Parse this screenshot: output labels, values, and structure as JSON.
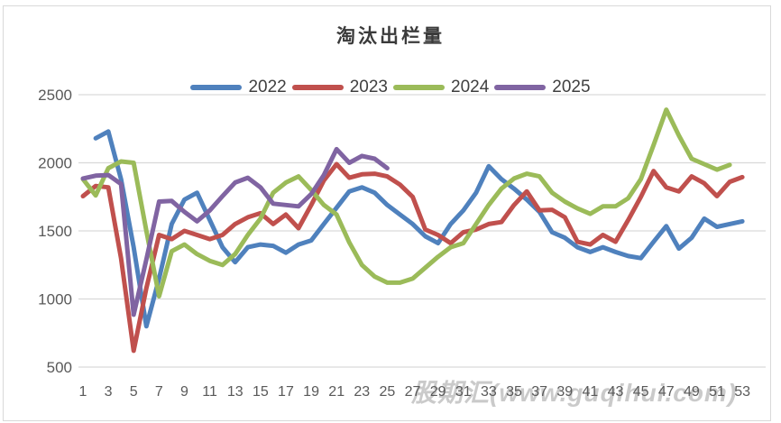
{
  "watermark_text": "股期汇(www.guqihui.com)",
  "chart_data": {
    "type": "line",
    "title": "淘汰出栏量",
    "xlabel": "",
    "ylabel": "",
    "x": [
      1,
      2,
      3,
      4,
      5,
      6,
      7,
      8,
      9,
      10,
      11,
      12,
      13,
      14,
      15,
      16,
      17,
      18,
      19,
      20,
      21,
      22,
      23,
      24,
      25,
      26,
      27,
      28,
      29,
      30,
      31,
      32,
      33,
      34,
      35,
      36,
      37,
      38,
      39,
      40,
      41,
      42,
      43,
      44,
      45,
      46,
      47,
      48,
      49,
      50,
      51,
      52,
      53
    ],
    "x_tick_labels": [
      "1",
      "3",
      "5",
      "7",
      "9",
      "11",
      "13",
      "15",
      "17",
      "19",
      "21",
      "23",
      "25",
      "27",
      "29",
      "31",
      "33",
      "35",
      "37",
      "39",
      "41",
      "43",
      "45",
      "47",
      "49",
      "51",
      "53"
    ],
    "x_ticks": [
      1,
      3,
      5,
      7,
      9,
      11,
      13,
      15,
      17,
      19,
      21,
      23,
      25,
      27,
      29,
      31,
      33,
      35,
      37,
      39,
      41,
      43,
      45,
      47,
      49,
      51,
      53
    ],
    "y_ticks": [
      500,
      1000,
      1500,
      2000,
      2500
    ],
    "ylim": [
      500,
      2500
    ],
    "grid": true,
    "legend_position": "top",
    "colors": {
      "grid": "#d9d9d9",
      "tick_text": "#595959",
      "title_text": "#3b3b3b",
      "series_2022": "#4F81BD",
      "series_2023": "#C0504D",
      "series_2024": "#9BBB59",
      "series_2025": "#8064A2"
    },
    "series": [
      {
        "name": "2022",
        "color": "#4F81BD",
        "values": [
          null,
          2180,
          2230,
          1880,
          1380,
          800,
          1150,
          1550,
          1730,
          1780,
          1580,
          1380,
          1270,
          1380,
          1400,
          1390,
          1340,
          1400,
          1430,
          1550,
          1670,
          1790,
          1820,
          1780,
          1690,
          1620,
          1550,
          1460,
          1410,
          1550,
          1650,
          1780,
          1975,
          1880,
          1810,
          1730,
          1640,
          1490,
          1450,
          1380,
          1345,
          1380,
          1345,
          1315,
          1300,
          1420,
          1535,
          1370,
          1450,
          1590,
          1530,
          1550,
          1570
        ]
      },
      {
        "name": "2023",
        "color": "#C0504D",
        "values": [
          1755,
          1830,
          1820,
          1300,
          620,
          1080,
          1470,
          1440,
          1500,
          1470,
          1440,
          1470,
          1550,
          1600,
          1630,
          1550,
          1620,
          1520,
          1690,
          1870,
          1990,
          1890,
          1915,
          1920,
          1900,
          1840,
          1750,
          1510,
          1470,
          1410,
          1490,
          1510,
          1550,
          1565,
          1690,
          1790,
          1650,
          1655,
          1600,
          1420,
          1400,
          1470,
          1420,
          1580,
          1750,
          1940,
          1820,
          1790,
          1900,
          1850,
          1755,
          1860,
          1895
        ]
      },
      {
        "name": "2024",
        "color": "#9BBB59",
        "values": [
          1880,
          1760,
          1960,
          2010,
          2000,
          1500,
          1020,
          1350,
          1400,
          1330,
          1280,
          1250,
          1330,
          1470,
          1590,
          1780,
          1855,
          1900,
          1800,
          1690,
          1620,
          1415,
          1250,
          1165,
          1120,
          1120,
          1150,
          1230,
          1310,
          1380,
          1410,
          1550,
          1690,
          1810,
          1885,
          1920,
          1900,
          1780,
          1715,
          1665,
          1625,
          1680,
          1680,
          1740,
          1880,
          2130,
          2390,
          2200,
          2030,
          1990,
          1950,
          1985,
          null
        ]
      },
      {
        "name": "2025",
        "color": "#8064A2",
        "values": [
          1885,
          1905,
          1910,
          1845,
          885,
          1290,
          1715,
          1720,
          1640,
          1570,
          1650,
          1755,
          1855,
          1890,
          1820,
          1700,
          1690,
          1680,
          1770,
          1910,
          2100,
          2000,
          2050,
          2030,
          1960,
          null,
          null,
          null,
          null,
          null,
          null,
          null,
          null,
          null,
          null,
          null,
          null,
          null,
          null,
          null,
          null,
          null,
          null,
          null,
          null,
          null,
          null,
          null,
          null,
          null,
          null,
          null,
          null
        ]
      }
    ]
  }
}
